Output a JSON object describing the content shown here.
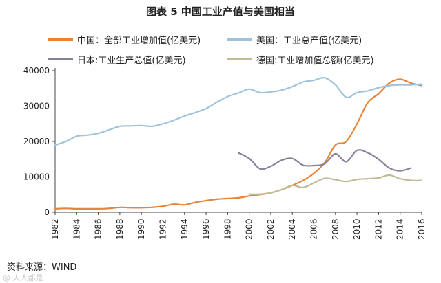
{
  "chart_data": {
    "type": "line",
    "title": "图表 5  中国工业产值与美国相当",
    "xlabel": "",
    "ylabel": "",
    "xlim": [
      1982,
      2016
    ],
    "ylim": [
      0,
      40000
    ],
    "yticks": [
      0,
      10000,
      20000,
      30000,
      40000
    ],
    "ytick_labels": [
      "0",
      "10000",
      "20000",
      "30000",
      "40000"
    ],
    "xticks": [
      1982,
      1984,
      1986,
      1988,
      1990,
      1992,
      1994,
      1996,
      1998,
      2000,
      2002,
      2004,
      2006,
      2008,
      2010,
      2012,
      2014,
      2016
    ],
    "xtick_labels": [
      "1982",
      "1984",
      "1986",
      "1988",
      "1990",
      "1992",
      "1994",
      "1996",
      "1998",
      "2000",
      "2002",
      "2004",
      "2006",
      "2008",
      "2010",
      "2012",
      "2014",
      "2016"
    ],
    "grid": false,
    "series": [
      {
        "name": "中国：全部工业增加值(亿美元)",
        "color": "#e8833a",
        "x": [
          1982,
          1983,
          1984,
          1985,
          1986,
          1987,
          1988,
          1989,
          1990,
          1991,
          1992,
          1993,
          1994,
          1995,
          1996,
          1997,
          1998,
          1999,
          2000,
          2001,
          2002,
          2003,
          2004,
          2005,
          2006,
          2007,
          2008,
          2009,
          2010,
          2011,
          2012,
          2013,
          2014,
          2015,
          2016
        ],
        "y": [
          1000,
          1100,
          1000,
          1000,
          1000,
          1100,
          1400,
          1300,
          1300,
          1400,
          1700,
          2300,
          2100,
          2800,
          3300,
          3700,
          3900,
          4100,
          4600,
          5000,
          5500,
          6400,
          7600,
          9000,
          11000,
          14000,
          19000,
          20000,
          25000,
          31000,
          33500,
          36500,
          37600,
          36500,
          35800
        ]
      },
      {
        "name": "美国：工业总产值(亿美元)",
        "color": "#9fc4d9",
        "x": [
          1982,
          1983,
          1984,
          1985,
          1986,
          1987,
          1988,
          1989,
          1990,
          1991,
          1992,
          1993,
          1994,
          1995,
          1996,
          1997,
          1998,
          1999,
          2000,
          2001,
          2002,
          2003,
          2004,
          2005,
          2006,
          2007,
          2008,
          2009,
          2010,
          2011,
          2012,
          2013,
          2014,
          2015,
          2016
        ],
        "y": [
          19000,
          20000,
          21500,
          21800,
          22300,
          23300,
          24300,
          24400,
          24500,
          24300,
          25000,
          26000,
          27200,
          28200,
          29300,
          31100,
          32700,
          33700,
          34800,
          33800,
          34000,
          34500,
          35500,
          36800,
          37300,
          38000,
          36000,
          32500,
          33800,
          34300,
          35200,
          35800,
          36000,
          36000,
          36200
        ]
      },
      {
        "name": "日本:工业生产总值(亿美元)",
        "color": "#8a7f9e",
        "x": [
          1999,
          2000,
          2001,
          2002,
          2003,
          2004,
          2005,
          2006,
          2007,
          2008,
          2009,
          2010,
          2011,
          2012,
          2013,
          2014,
          2015
        ],
        "y": [
          16800,
          15200,
          12300,
          13000,
          14700,
          15200,
          13300,
          13200,
          13700,
          16500,
          14300,
          17500,
          16800,
          15000,
          12500,
          11700,
          12500
        ]
      },
      {
        "name": "德国:工业增加值总额(亿美元)",
        "color": "#bfbb93",
        "x": [
          2000,
          2001,
          2002,
          2003,
          2004,
          2005,
          2006,
          2007,
          2008,
          2009,
          2010,
          2011,
          2012,
          2013,
          2014,
          2015,
          2016
        ],
        "y": [
          5100,
          5100,
          5500,
          6400,
          7600,
          7000,
          8300,
          9600,
          9200,
          8700,
          9300,
          9500,
          9700,
          10500,
          9500,
          9000,
          9000
        ]
      }
    ]
  },
  "source_text": "资料来源：WIND",
  "watermark_text": "@ 人人都是"
}
